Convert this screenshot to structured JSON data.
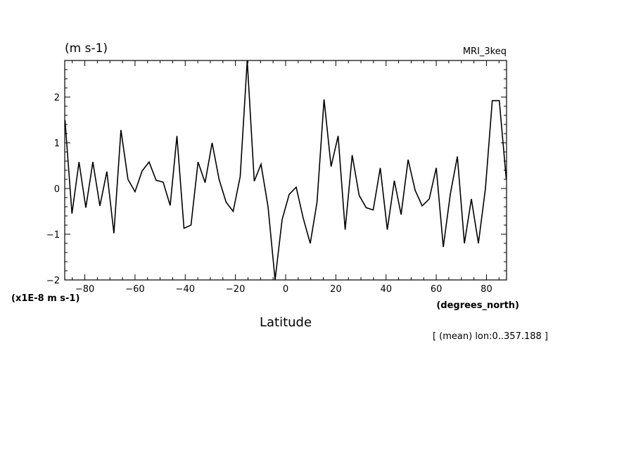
{
  "chart_data": {
    "type": "line",
    "title": "(m s-1)",
    "model_label": "MRI_3keq",
    "xlabel": "Latitude",
    "x_units": "(degrees_north)",
    "y_multiplier": "(x1E-8 m s-1)",
    "annotation": "[ (mean) lon:0..357.188 ]",
    "xlim": [
      -88,
      88
    ],
    "ylim": [
      -2,
      2.8
    ],
    "x_ticks": [
      -80,
      -60,
      -40,
      -20,
      0,
      20,
      40,
      60,
      80
    ],
    "y_ticks": [
      -2,
      -1,
      0,
      1,
      2
    ],
    "grid": false,
    "series": [
      {
        "x": [
          -87.9,
          -85.1,
          -82.3,
          -79.6,
          -76.8,
          -74.0,
          -71.2,
          -68.4,
          -65.6,
          -62.8,
          -60.0,
          -57.2,
          -54.4,
          -51.6,
          -48.8,
          -46.0,
          -43.3,
          -40.5,
          -37.7,
          -34.9,
          -32.1,
          -29.3,
          -26.5,
          -23.7,
          -20.9,
          -18.1,
          -15.3,
          -12.5,
          -9.8,
          -7.0,
          -4.2,
          -1.4,
          1.4,
          4.2,
          7.0,
          9.8,
          12.5,
          15.3,
          18.1,
          20.9,
          23.7,
          26.5,
          29.3,
          32.1,
          34.9,
          37.7,
          40.5,
          43.3,
          46.0,
          48.8,
          51.6,
          54.4,
          57.2,
          60.0,
          62.8,
          65.6,
          68.4,
          71.2,
          74.0,
          76.8,
          79.6,
          82.3,
          85.1,
          87.9
        ],
        "values": [
          1.5,
          -0.55,
          0.58,
          -0.42,
          0.58,
          -0.38,
          0.37,
          -0.98,
          1.28,
          0.2,
          -0.07,
          0.38,
          0.58,
          0.18,
          0.14,
          -0.37,
          1.15,
          -0.87,
          -0.8,
          0.58,
          0.13,
          1.0,
          0.2,
          -0.3,
          -0.5,
          0.26,
          2.8,
          0.16,
          0.53,
          -0.4,
          -2.0,
          -0.68,
          -0.13,
          0.03,
          -0.65,
          -1.2,
          -0.3,
          1.95,
          0.48,
          1.15,
          -0.9,
          0.73,
          -0.15,
          -0.42,
          -0.47,
          0.45,
          -0.9,
          0.17,
          -0.57,
          0.63,
          -0.04,
          -0.38,
          -0.23,
          0.45,
          -1.28,
          -0.12,
          0.7,
          -1.2,
          -0.23,
          -1.2,
          0.0,
          1.92,
          1.92,
          0.2
        ]
      }
    ]
  }
}
